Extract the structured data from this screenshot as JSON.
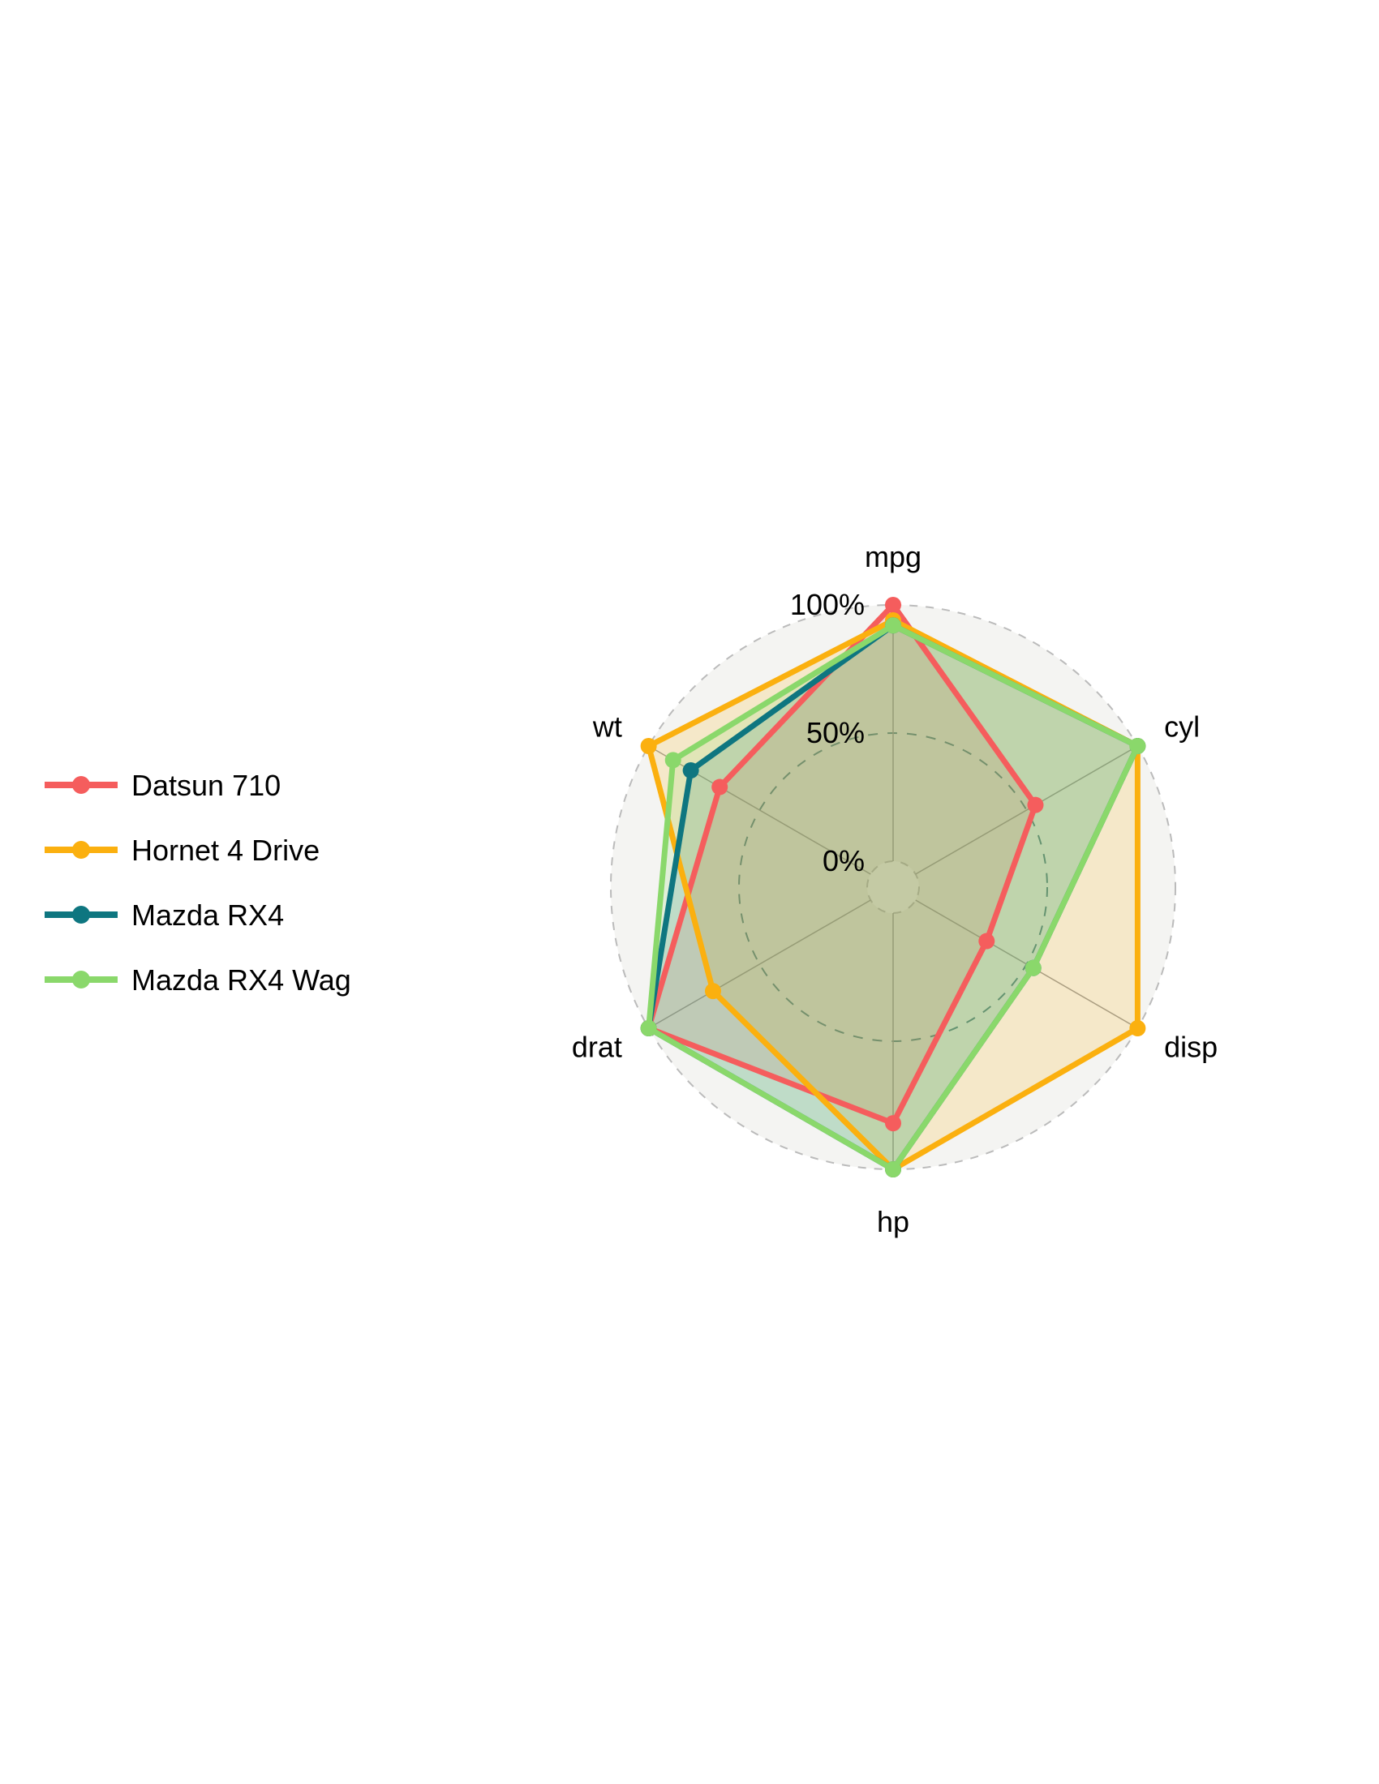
{
  "chart_data": {
    "type": "radar",
    "axes": [
      "mpg",
      "cyl",
      "disp",
      "hp",
      "drat",
      "wt"
    ],
    "grid_labels": [
      "0%",
      "50%",
      "100%"
    ],
    "grid_levels": [
      0,
      0.5,
      1.0
    ],
    "series": [
      {
        "name": "Datsun 710",
        "color": "#f55d5d",
        "values": [
          1.0,
          0.54,
          0.32,
          0.82,
          1.0,
          0.68
        ]
      },
      {
        "name": "Hornet 4 Drive",
        "color": "#fbb00f",
        "values": [
          0.94,
          1.0,
          1.0,
          1.0,
          0.71,
          1.0
        ]
      },
      {
        "name": "Mazda RX4",
        "color": "#0e7680",
        "values": [
          0.92,
          1.0,
          0.53,
          1.0,
          1.0,
          0.81
        ]
      },
      {
        "name": "Mazda RX4 Wag",
        "color": "#8ad86b",
        "values": [
          0.92,
          1.0,
          0.53,
          1.0,
          1.0,
          0.89
        ]
      }
    ],
    "legend_position": "left",
    "grid": true
  }
}
